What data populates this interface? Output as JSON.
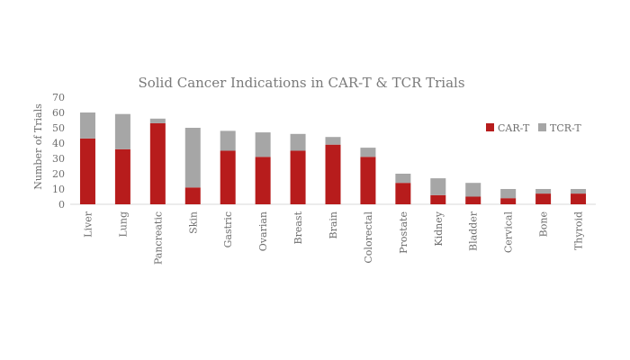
{
  "chart_data": {
    "type": "bar",
    "stacked": true,
    "title": "Solid Cancer Indications in CAR-T & TCR Trials",
    "xlabel": "",
    "ylabel": "Number of Trials",
    "ylim": [
      0,
      70
    ],
    "yticks": [
      0,
      10,
      20,
      30,
      40,
      50,
      60,
      70
    ],
    "grid": false,
    "legend_position": "right",
    "categories": [
      "Liver",
      "Lung",
      "Pancreatic",
      "Skin",
      "Gastric",
      "Ovarian",
      "Breast",
      "Brain",
      "Colorectal",
      "Prostate",
      "Kidney",
      "Bladder",
      "Cervical",
      "Bone",
      "Thyroid"
    ],
    "series": [
      {
        "name": "CAR-T",
        "color": "#b71c1c",
        "values": [
          43,
          36,
          53,
          11,
          35,
          31,
          35,
          39,
          31,
          14,
          6,
          5,
          4,
          7,
          7
        ]
      },
      {
        "name": "TCR-T",
        "color": "#a6a6a6",
        "values": [
          17,
          23,
          3,
          39,
          13,
          16,
          11,
          5,
          6,
          6,
          11,
          9,
          6,
          3,
          3
        ]
      }
    ]
  }
}
